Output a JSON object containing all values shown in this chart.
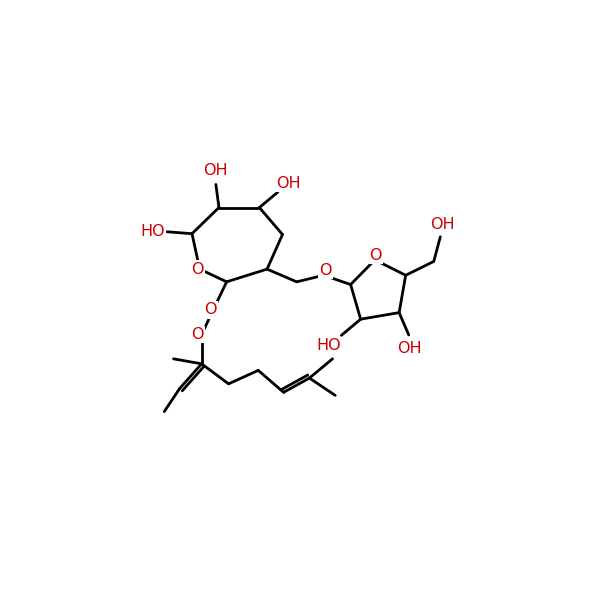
{
  "bg_color": "#ffffff",
  "bond_color": "#000000",
  "oxygen_color": "#cc0000",
  "linewidth": 2.0,
  "fontsize": 11.5,
  "figsize": [
    6.0,
    6.0
  ],
  "dpi": 100,
  "xlim": [
    -1.0,
    11.0
  ],
  "ylim": [
    -1.0,
    11.0
  ]
}
